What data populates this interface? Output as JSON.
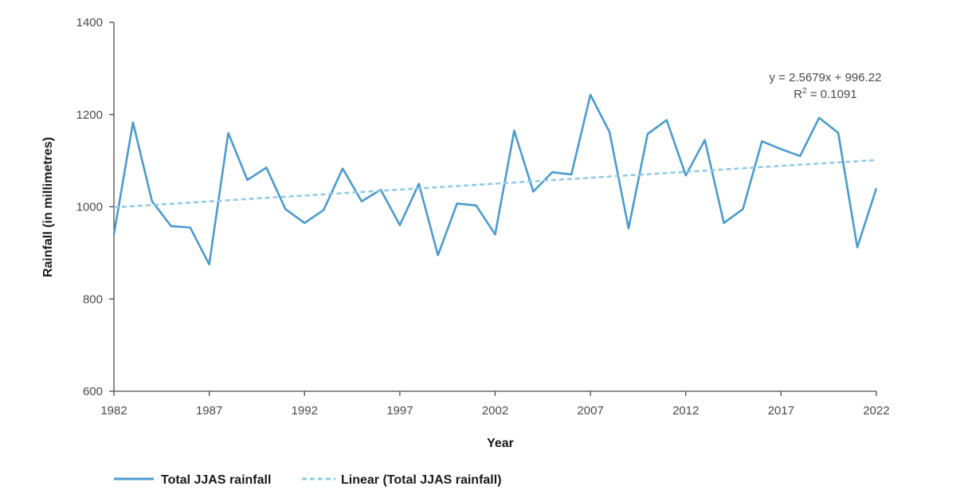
{
  "chart_data": {
    "type": "line",
    "title": "",
    "xlabel": "Year",
    "ylabel": "Rainfall (in millimetres)",
    "xlim": [
      1982,
      2022
    ],
    "ylim": [
      600,
      1400
    ],
    "x_ticks": [
      "1982",
      "1987",
      "1992",
      "1997",
      "2002",
      "2007",
      "2012",
      "2017",
      "2022"
    ],
    "y_ticks": [
      "600",
      "800",
      "1000",
      "1200",
      "1400"
    ],
    "grid": false,
    "legend_position": "bottom-left",
    "x": [
      1982,
      1983,
      1984,
      1985,
      1986,
      1987,
      1988,
      1989,
      1990,
      1991,
      1992,
      1993,
      1994,
      1995,
      1996,
      1997,
      1998,
      1999,
      2000,
      2001,
      2002,
      2003,
      2004,
      2005,
      2006,
      2007,
      2008,
      2009,
      2010,
      2011,
      2012,
      2013,
      2014,
      2015,
      2016,
      2017,
      2018,
      2019,
      2020,
      2021,
      2022
    ],
    "series": [
      {
        "name": "Total JJAS rainfall",
        "color": "#4b9bcf",
        "style": "solid",
        "values": [
          940,
          1183,
          1012,
          958,
          955,
          875,
          1160,
          1058,
          1085,
          995,
          965,
          993,
          1083,
          1012,
          1037,
          960,
          1050,
          895,
          1007,
          1003,
          940,
          1165,
          1033,
          1075,
          1070,
          1243,
          1162,
          953,
          1158,
          1188,
          1068,
          1145,
          965,
          995,
          1142,
          1125,
          1110,
          1193,
          1160,
          912,
          1040
        ]
      },
      {
        "name": "Linear (Total JJAS rainfall)",
        "color": "#8ecae6",
        "style": "dashed",
        "values": [
          998.79,
          1101.5
        ],
        "x": [
          1982,
          2022
        ]
      }
    ],
    "annotations": {
      "equation": "y = 2.5679x + 996.22",
      "r2_prefix": "R",
      "r2_sup": "2",
      "r2_suffix": " = 0.1091"
    }
  }
}
